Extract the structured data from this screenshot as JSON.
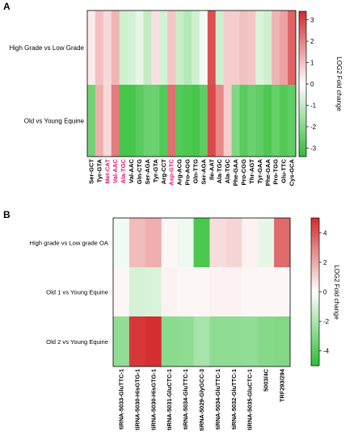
{
  "chart_data": [
    {
      "type": "heatmap",
      "panel_label": "A",
      "rows": [
        "High Grade vs Low Grade",
        "Old vs Young Equine"
      ],
      "columns": [
        "Ser-GCT",
        "Tyr-GTA",
        "Met-CAT",
        "Val-AAC",
        "Ala-TGC",
        "Val-AAC",
        "Gln-CTG",
        "Ser-AGA",
        "Tyr-GTA",
        "Arg-CCT",
        "Asp-GTC",
        "Arg-ACG",
        "Pro-AGG",
        "Gln-TTG",
        "Ser-AGA",
        "Ile-AAT",
        "Ala-TGC",
        "Ala-TGC",
        "Phe-GAA",
        "Pro-CGG",
        "Thr-AGT",
        "Tyr-GAA",
        "Phe-GAA",
        "Pro-TGG",
        "Glu-TTC",
        "Cys-GCA"
      ],
      "highlighted_columns": [
        2,
        3,
        4,
        10
      ],
      "values": [
        [
          0.3,
          1.0,
          0.6,
          1.2,
          -0.8,
          -0.7,
          -0.4,
          -1.0,
          0.5,
          -0.7,
          0.9,
          -0.9,
          -1.2,
          -0.8,
          -0.2,
          2.8,
          -0.8,
          0.8,
          0.8,
          1.0,
          0.9,
          -0.6,
          -0.8,
          1.2,
          1.5,
          2.5
        ],
        [
          -2.3,
          1.3,
          0.6,
          2.1,
          -3.0,
          -3.0,
          -2.7,
          -2.4,
          -2.4,
          -2.8,
          2.3,
          -2.8,
          -2.9,
          -3.0,
          -2.6,
          2.9,
          1.9,
          0.8,
          -2.1,
          -2.7,
          -2.4,
          -2.6,
          -2.9,
          -2.5,
          -2.8,
          -2.6
        ]
      ],
      "colorbar": {
        "label": "LOG2 Fold change",
        "range": [
          -3.4,
          3.4
        ],
        "ticks": [
          3,
          2,
          1,
          0,
          -1,
          -2,
          -3
        ]
      }
    },
    {
      "type": "heatmap",
      "panel_label": "B",
      "rows": [
        "High grade vs Low grade OA",
        "Old 1 vs Young Equine",
        "Old 2 vs Young Equine"
      ],
      "columns": [
        "tiRNA-5033-GluTTC-1",
        "tiRNA-5030-HisGTG-1",
        "tiRNA-5030-HisGTG-1",
        "tiRNA-5031-GluCTC-1",
        "tiRNA-5034-GluTTC-1",
        "tiRNA-5029-GlyGCC-3",
        "tiRNA-5034-GluTTC-1",
        "tiRNA-5032-GluTTC-1",
        "tiRNA-5035-GluCTC-1",
        "5003/4C",
        "TRF293/294"
      ],
      "highlighted_columns": [],
      "values": [
        [
          -0.3,
          1.6,
          1.9,
          0.2,
          -0.4,
          -4.3,
          0.8,
          1.0,
          0.3,
          -0.6,
          3.5
        ],
        [
          0.2,
          -1.0,
          -0.9,
          0.3,
          0.2,
          0.2,
          0.3,
          0.3,
          0.2,
          0.2,
          0.2
        ],
        [
          -2.6,
          4.7,
          4.9,
          -2.8,
          -2.7,
          -2.1,
          -2.7,
          -2.7,
          -2.6,
          -2.9,
          -3.0
        ]
      ],
      "colorbar": {
        "label": "LOG2 Fold change",
        "range": [
          -5,
          5
        ],
        "ticks": [
          4,
          2,
          0,
          -2,
          -4
        ]
      }
    }
  ]
}
